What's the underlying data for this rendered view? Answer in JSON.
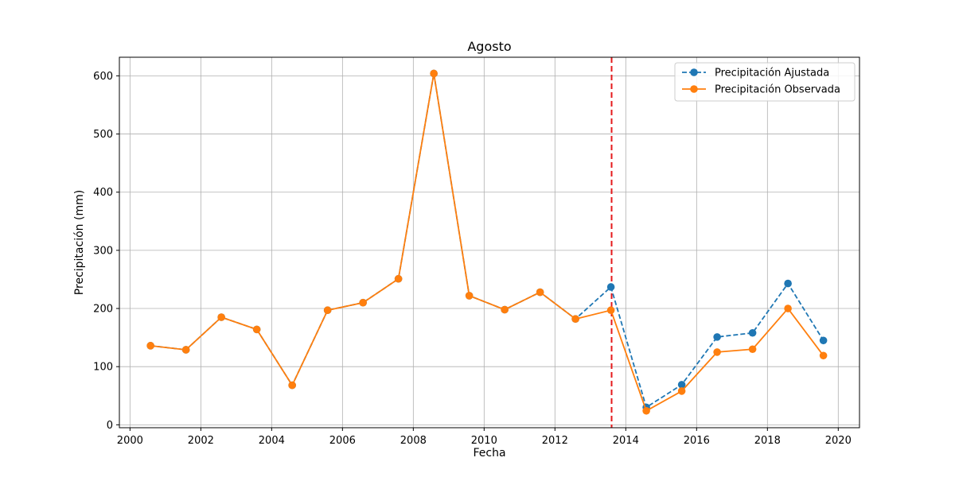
{
  "chart_data": {
    "type": "line",
    "title": "Agosto",
    "xlabel": "Fecha",
    "ylabel": "Precipitación (mm)",
    "xlim": [
      1999.7,
      2020.6
    ],
    "ylim": [
      -5,
      632
    ],
    "grid": true,
    "legend_position": "top-right",
    "x_ticks": [
      2000,
      2002,
      2004,
      2006,
      2008,
      2010,
      2012,
      2014,
      2016,
      2018,
      2020
    ],
    "x_tick_labels": [
      "2000",
      "2002",
      "2004",
      "2006",
      "2008",
      "2010",
      "2012",
      "2014",
      "2016",
      "2018",
      "2020"
    ],
    "y_ticks": [
      0,
      100,
      200,
      300,
      400,
      500,
      600
    ],
    "y_tick_labels": [
      "0",
      "100",
      "200",
      "300",
      "400",
      "500",
      "600"
    ],
    "x": [
      2000.58,
      2001.58,
      2002.58,
      2003.58,
      2004.58,
      2005.58,
      2006.58,
      2007.58,
      2008.58,
      2009.58,
      2010.58,
      2011.58,
      2012.58,
      2013.58,
      2014.58,
      2015.58,
      2016.58,
      2017.58,
      2018.58,
      2019.58
    ],
    "series": [
      {
        "name": "Precipitación Ajustada",
        "color": "#1f77b4",
        "linestyle": "dashed",
        "values": [
          136,
          129,
          185,
          164,
          68,
          197,
          210,
          251,
          604,
          222,
          198,
          228,
          182,
          237,
          30,
          69,
          151,
          158,
          243,
          145
        ]
      },
      {
        "name": "Precipitación Observada",
        "color": "#ff7f0e",
        "linestyle": "solid",
        "values": [
          136,
          129,
          185,
          164,
          68,
          197,
          210,
          251,
          604,
          222,
          198,
          228,
          182,
          197,
          24,
          58,
          125,
          130,
          200,
          119
        ]
      }
    ],
    "vline": {
      "x": 2013.6,
      "color": "#e41a1c",
      "linestyle": "dashed"
    }
  }
}
